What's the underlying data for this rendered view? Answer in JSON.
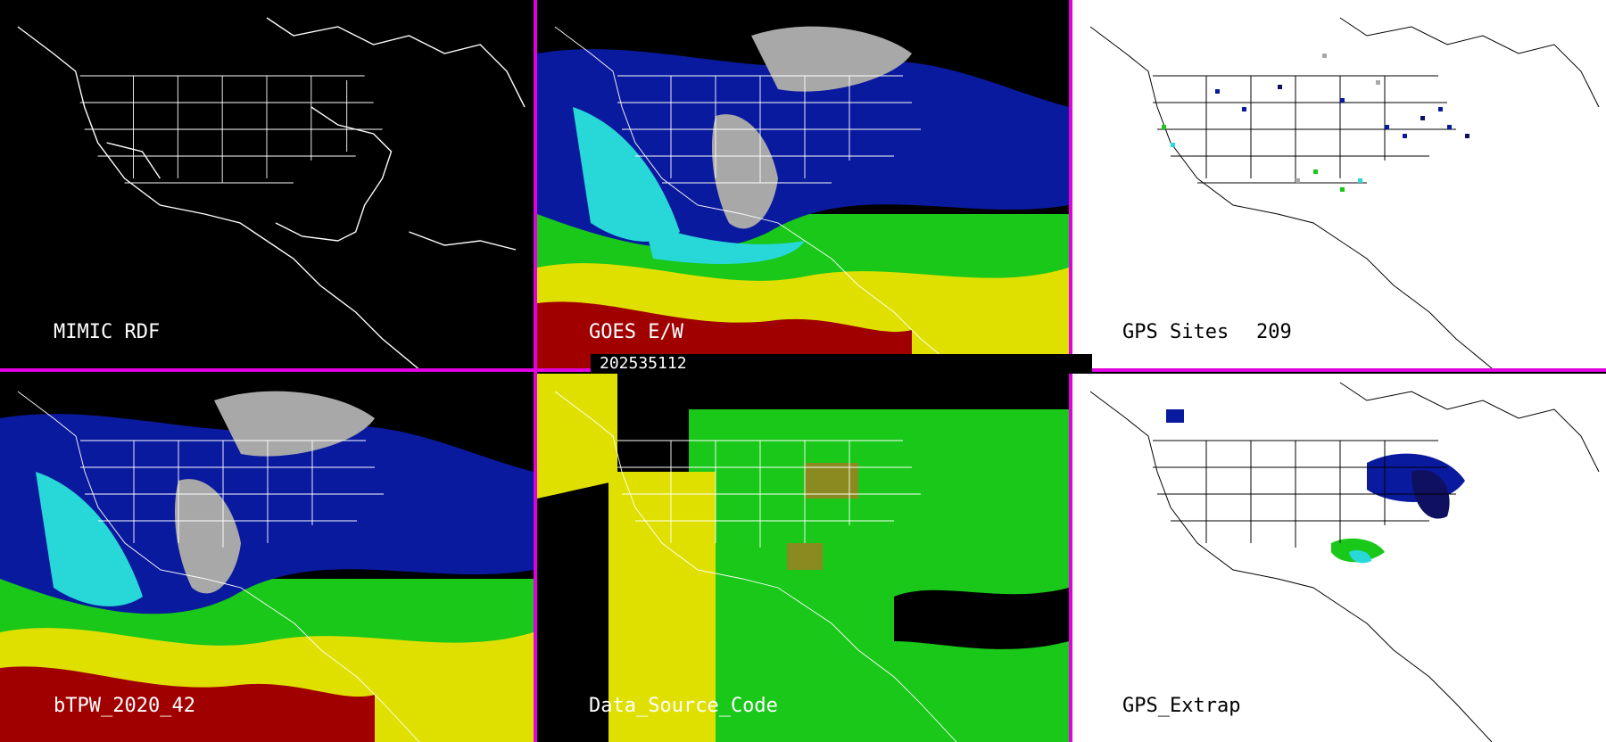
{
  "panels": [
    {
      "id": "mimic-rdf",
      "label": "MIMIC RDF",
      "theme": "dark"
    },
    {
      "id": "goes-ew",
      "label": "GOES E/W",
      "theme": "dark"
    },
    {
      "id": "gps-sites",
      "label": "GPS Sites",
      "count": "209",
      "theme": "light"
    },
    {
      "id": "btpw",
      "label": "bTPW_2020_42",
      "theme": "dark"
    },
    {
      "id": "data-source-code",
      "label": "Data_Source_Code",
      "theme": "dark"
    },
    {
      "id": "gps-extrap",
      "label": "GPS_Extrap",
      "theme": "light"
    }
  ],
  "timestamp": "202535112",
  "colors": {
    "divider": "#e000e0",
    "dark_bg": "#000000",
    "light_bg": "#ffffff",
    "gray": "#a8a8a8",
    "blue": "#0a1a9e",
    "navy": "#101060",
    "cyan": "#28d8d8",
    "green": "#19c819",
    "yellow": "#e0e000",
    "red": "#a00000"
  }
}
